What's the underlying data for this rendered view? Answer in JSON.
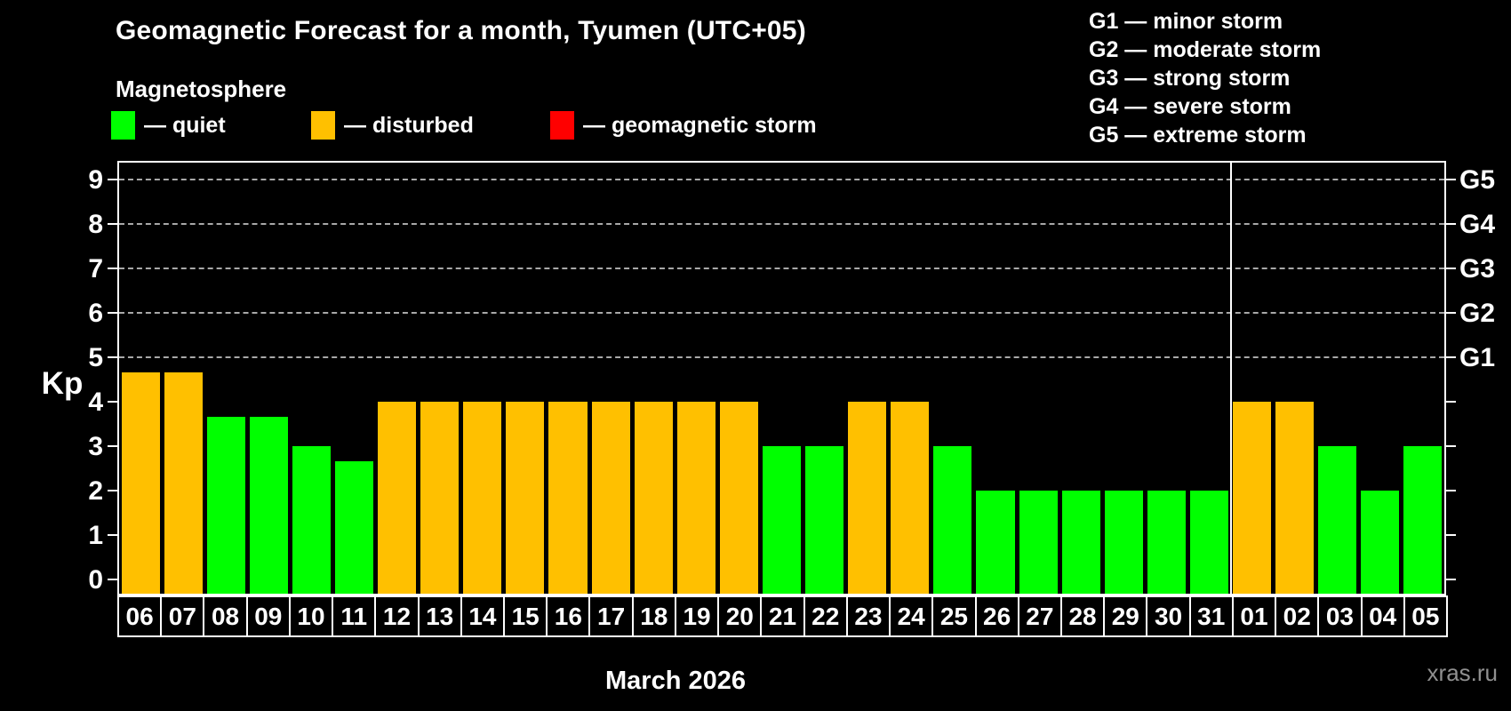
{
  "header": {
    "title": "Geomagnetic Forecast for a month, Tyumen (UTC+05)",
    "subtitle": "Magnetosphere",
    "legend": [
      {
        "name": "quiet",
        "color": "#00ff00",
        "label": "— quiet"
      },
      {
        "name": "disturbed",
        "color": "#ffc000",
        "label": "— disturbed"
      },
      {
        "name": "storm",
        "color": "#ff0000",
        "label": "— geomagnetic storm"
      }
    ],
    "storm_scale": [
      {
        "text": "G1 — minor storm"
      },
      {
        "text": "G2 — moderate storm"
      },
      {
        "text": "G3 — strong storm"
      },
      {
        "text": "G4 — severe storm"
      },
      {
        "text": "G5 — extreme storm"
      }
    ]
  },
  "colors": {
    "quiet": "#00ff00",
    "disturbed": "#ffc000",
    "storm": "#ff0000",
    "grid": "#a8a8a8",
    "axis": "#ffffff",
    "background": "#000000",
    "watermark": "#909090"
  },
  "chart_data": {
    "type": "bar",
    "title": "Geomagnetic Forecast for a month, Tyumen (UTC+05)",
    "ylabel": "Kp",
    "xlabel": "March 2026",
    "ylim": [
      0,
      9
    ],
    "yticks": [
      0,
      1,
      2,
      3,
      4,
      5,
      6,
      7,
      8,
      9
    ],
    "gridlines": [
      5,
      6,
      7,
      8,
      9
    ],
    "grid_style": "dashed",
    "legend_position": "top",
    "right_axis": [
      {
        "kp": 5,
        "label": "G1"
      },
      {
        "kp": 6,
        "label": "G2"
      },
      {
        "kp": 7,
        "label": "G3"
      },
      {
        "kp": 8,
        "label": "G4"
      },
      {
        "kp": 9,
        "label": "G5"
      }
    ],
    "month_divider_after": "31",
    "categories": [
      "06",
      "07",
      "08",
      "09",
      "10",
      "11",
      "12",
      "13",
      "14",
      "15",
      "16",
      "17",
      "18",
      "19",
      "20",
      "21",
      "22",
      "23",
      "24",
      "25",
      "26",
      "27",
      "28",
      "29",
      "30",
      "31",
      "01",
      "02",
      "03",
      "04",
      "05"
    ],
    "values": [
      4.67,
      4.67,
      3.67,
      3.67,
      3,
      2.67,
      4,
      4,
      4,
      4,
      4,
      4,
      4,
      4,
      4,
      3,
      3,
      4,
      4,
      3,
      2,
      2,
      2,
      2,
      2,
      2,
      4,
      4,
      3,
      2,
      3
    ],
    "statuses": [
      "disturbed",
      "disturbed",
      "quiet",
      "quiet",
      "quiet",
      "quiet",
      "disturbed",
      "disturbed",
      "disturbed",
      "disturbed",
      "disturbed",
      "disturbed",
      "disturbed",
      "disturbed",
      "disturbed",
      "quiet",
      "quiet",
      "disturbed",
      "disturbed",
      "quiet",
      "quiet",
      "quiet",
      "quiet",
      "quiet",
      "quiet",
      "quiet",
      "disturbed",
      "disturbed",
      "quiet",
      "quiet",
      "quiet"
    ]
  },
  "footer": {
    "caption": "March 2026",
    "watermark": "xras.ru"
  }
}
